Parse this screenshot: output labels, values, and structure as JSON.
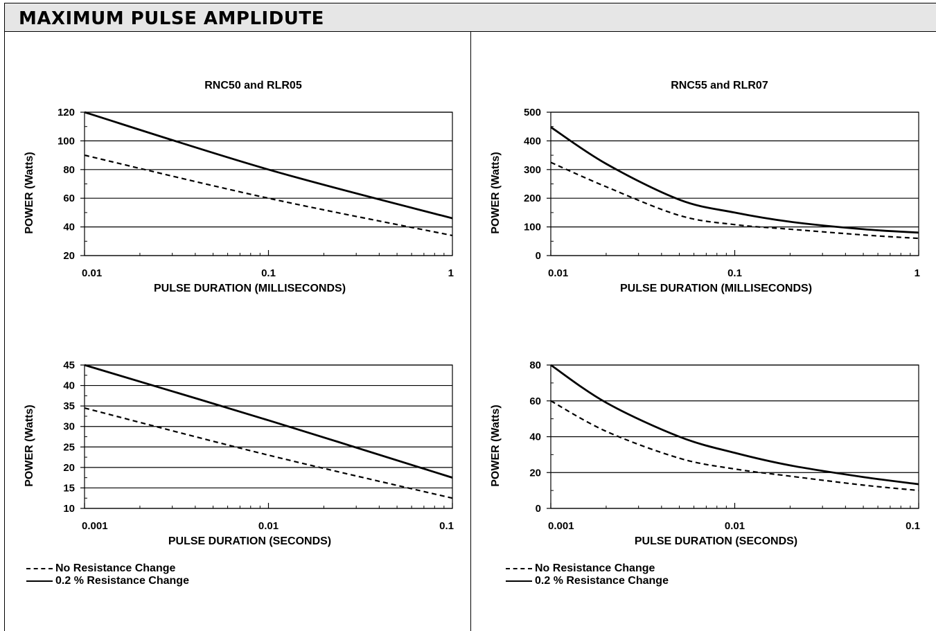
{
  "page": {
    "title": "MAXIMUM PULSE AMPLIDUTE"
  },
  "legends": [
    {
      "dashed": "No Resistance Change",
      "solid": "0.2 % Resistance Change"
    },
    {
      "dashed": "No Resistance Change",
      "solid": "0.2 % Resistance Change"
    }
  ],
  "chart_data": [
    {
      "type": "line",
      "title": "RNC50 and RLR05",
      "xlabel": "PULSE DURATION (MILLISECONDS)",
      "ylabel": "POWER (Watts)",
      "xscale": "log",
      "xlim": [
        0.01,
        1
      ],
      "ylim": [
        20,
        120
      ],
      "xticks": [
        0.01,
        0.1,
        1
      ],
      "xtick_labels": [
        "0.01",
        "0.1",
        "1"
      ],
      "yticks": [
        20,
        40,
        60,
        80,
        100,
        120
      ],
      "ytick_labels": [
        "20",
        "40",
        "60",
        "80",
        "100",
        "120"
      ],
      "ymajor_step": 20,
      "grid": true,
      "series": [
        {
          "name": "No Resistance Change",
          "style": "dashed",
          "x": [
            0.01,
            0.1,
            1
          ],
          "y": [
            90,
            60,
            34
          ]
        },
        {
          "name": "0.2 % Resistance Change",
          "style": "solid",
          "x": [
            0.01,
            0.1,
            1
          ],
          "y": [
            120,
            80,
            46
          ]
        }
      ]
    },
    {
      "type": "line",
      "title": "RNC55 and RLR07",
      "xlabel": "PULSE DURATION (MILLISECONDS)",
      "ylabel": "POWER (Watts)",
      "xscale": "log",
      "xlim": [
        0.01,
        1
      ],
      "ylim": [
        0,
        500
      ],
      "xticks": [
        0.01,
        0.1,
        1
      ],
      "xtick_labels": [
        "0.01",
        "0.1",
        "1"
      ],
      "yticks": [
        0,
        100,
        200,
        300,
        400,
        500
      ],
      "ytick_labels": [
        "0",
        "100",
        "200",
        "300",
        "400",
        "500"
      ],
      "ymajor_step": 100,
      "grid": true,
      "series": [
        {
          "name": "No Resistance Change",
          "style": "dashed",
          "x": [
            0.01,
            0.02,
            0.05,
            0.1,
            0.2,
            0.5,
            1
          ],
          "y": [
            325,
            240,
            140,
            108,
            92,
            72,
            60
          ]
        },
        {
          "name": "0.2 % Resistance Change",
          "style": "solid",
          "x": [
            0.01,
            0.02,
            0.05,
            0.1,
            0.2,
            0.5,
            1
          ],
          "y": [
            448,
            320,
            195,
            150,
            118,
            92,
            80
          ]
        }
      ]
    },
    {
      "type": "line",
      "title": "",
      "xlabel": "PULSE DURATION (SECONDS)",
      "ylabel": "POWER (Watts)",
      "xscale": "log",
      "xlim": [
        0.001,
        0.1
      ],
      "ylim": [
        10,
        45
      ],
      "xticks": [
        0.001,
        0.01,
        0.1
      ],
      "xtick_labels": [
        "0.001",
        "0.01",
        "0.1"
      ],
      "yticks": [
        10,
        15,
        20,
        25,
        30,
        35,
        40,
        45
      ],
      "ytick_labels": [
        "10",
        "15",
        "20",
        "25",
        "30",
        "35",
        "40",
        "45"
      ],
      "ymajor_step": 5,
      "grid": true,
      "series": [
        {
          "name": "No Resistance Change",
          "style": "dashed",
          "x": [
            0.001,
            0.01,
            0.1
          ],
          "y": [
            34.5,
            23,
            12.5
          ]
        },
        {
          "name": "0.2 % Resistance Change",
          "style": "solid",
          "x": [
            0.001,
            0.01,
            0.1
          ],
          "y": [
            45,
            31.5,
            17.5
          ]
        }
      ]
    },
    {
      "type": "line",
      "title": "",
      "xlabel": "PULSE DURATION (SECONDS)",
      "ylabel": "POWER (Watts)",
      "xscale": "log",
      "xlim": [
        0.001,
        0.1
      ],
      "ylim": [
        0,
        80
      ],
      "xticks": [
        0.001,
        0.01,
        0.1
      ],
      "xtick_labels": [
        "0.001",
        "0.01",
        "0.1"
      ],
      "yticks": [
        0,
        20,
        40,
        60,
        80
      ],
      "ytick_labels": [
        "0",
        "20",
        "40",
        "60",
        "80"
      ],
      "ymajor_step": 20,
      "grid": true,
      "series": [
        {
          "name": "No Resistance Change",
          "style": "dashed",
          "x": [
            0.001,
            0.002,
            0.005,
            0.01,
            0.02,
            0.05,
            0.1
          ],
          "y": [
            60,
            43,
            28,
            22,
            18,
            13,
            10
          ]
        },
        {
          "name": "0.2 % Resistance Change",
          "style": "solid",
          "x": [
            0.001,
            0.002,
            0.005,
            0.01,
            0.02,
            0.05,
            0.1
          ],
          "y": [
            80,
            59,
            40,
            31,
            24,
            17.5,
            13.5
          ]
        }
      ]
    }
  ]
}
